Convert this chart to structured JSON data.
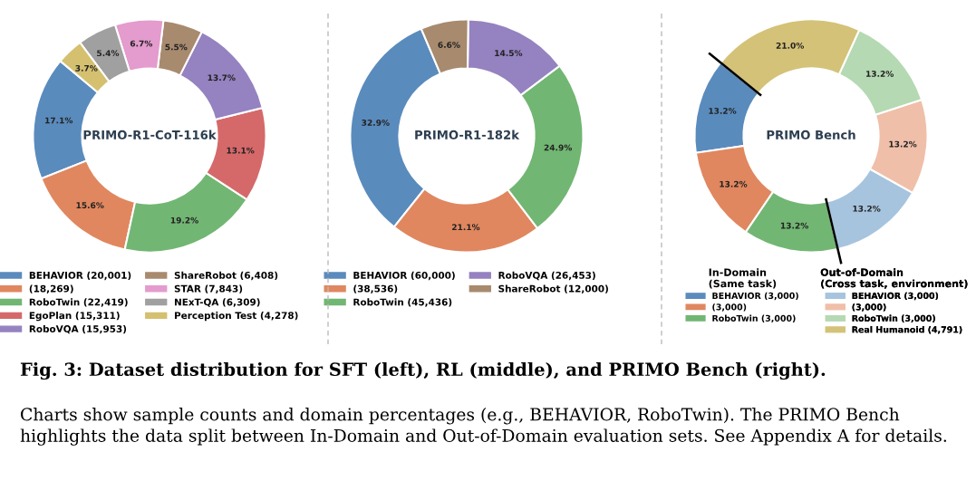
{
  "chart_data": [
    {
      "type": "donut",
      "title": "PRIMO-R1-CoT-116k",
      "legend": "bottom",
      "annotations": [
        "Fig. 3: Dataset distribution for SFT (left), RL (middle), and PRIMO Bench (right).",
        "Charts show sample counts and domain percentages (e.g., BEHAVIOR, RoboTwin). The PRIMO Bench highlights the data split between In-Domain and Out-of-Domain evaluation sets. See Appendix A for details."
      ],
      "categories": [
        "BEHAVIOR (20,001)",
        "(18,269)",
        "RoboTwin (22,419)",
        "EgoPlan (15,311)",
        "RoboVQA (15,953)",
        "ShareRobot (6,408)",
        "STAR (7,843)",
        "NExT-QA (6,309)",
        "Perception Test (4,278)"
      ],
      "values": [
        17.1,
        15.6,
        19.2,
        13.1,
        13.7,
        5.5,
        6.7,
        5.4,
        3.7
      ],
      "value_labels": [
        "17.1%",
        "15.6%",
        "19.2%",
        "13.1%",
        "13.7%",
        "5.5%",
        "6.7%",
        "5.4%",
        "3.7%"
      ],
      "colors": [
        "#5a8bbd",
        "#e0875f",
        "#72b673",
        "#d5696a",
        "#9582c0",
        "#a88a6e",
        "#e49bcd",
        "#a0a0a0",
        "#d4c06f"
      ]
    },
    {
      "type": "donut",
      "title": "PRIMO-R1-182k",
      "legend": "bottom",
      "categories": [
        "BEHAVIOR (60,000)",
        "(38,536)",
        "RoboTwin (45,436)",
        "RoboVQA (26,453)",
        "ShareRobot (12,000)"
      ],
      "values": [
        32.9,
        21.1,
        24.9,
        14.5,
        6.6
      ],
      "value_labels": [
        "32.9%",
        "21.1%",
        "24.9%",
        "14.5%",
        "6.6%"
      ],
      "colors": [
        "#5a8bbd",
        "#e0875f",
        "#72b673",
        "#9582c0",
        "#a88a6e"
      ]
    },
    {
      "type": "donut",
      "title": "PRIMO Bench",
      "legend": "bottom",
      "annotations": [
        "In-Domain\n(Same task)",
        "Out-of-Domain\n(Cross task, environment)"
      ],
      "categories": [
        "BEHAVIOR (3,000)",
        "(3,000)",
        "RoboTwin (3,000)",
        "BEHAVIOR (3,000)",
        "(3,000)",
        "RoboTwin (3,000)",
        "Real Humanoid (4,791)"
      ],
      "values": [
        13.2,
        13.2,
        13.2,
        13.2,
        13.2,
        13.2,
        21.0
      ],
      "value_labels": [
        "13.2%",
        "13.2%",
        "13.2%",
        "13.2%",
        "13.2%",
        "13.2%",
        "21.0%"
      ],
      "colors": [
        "#5a8bbd",
        "#e0875f",
        "#72b673",
        "#a6c4de",
        "#f0bfa9",
        "#b5d9b2",
        "#d4c278"
      ]
    }
  ]
}
